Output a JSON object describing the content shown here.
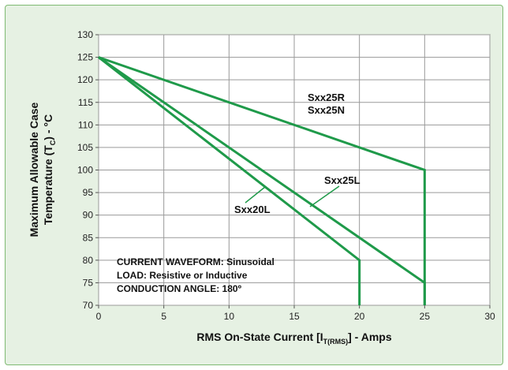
{
  "chart_data": {
    "type": "line",
    "title": "",
    "xlabel": "RMS On-State Current [I",
    "xlabel_sub": "T(RMS)",
    "xlabel_suffix": "] - Amps",
    "ylabel_line1": "Maximum Allowable Case",
    "ylabel_line2": "Temperature (T",
    "ylabel_sub": "C",
    "ylabel_suffix": ") - °C",
    "xlim": [
      0,
      30
    ],
    "ylim": [
      70,
      130
    ],
    "xticks": [
      0,
      5,
      10,
      15,
      20,
      25,
      30
    ],
    "yticks": [
      70,
      75,
      80,
      85,
      90,
      95,
      100,
      105,
      110,
      115,
      120,
      125,
      130
    ],
    "grid": true,
    "line_color": "#1f9a4a",
    "series": [
      {
        "name": "Sxx25R / Sxx25N",
        "label_lines": [
          "Sxx25R",
          "Sxx25N"
        ],
        "x": [
          0,
          25,
          25
        ],
        "y": [
          125,
          100,
          70
        ]
      },
      {
        "name": "Sxx25L",
        "label_lines": [
          "Sxx25L"
        ],
        "x": [
          0,
          25,
          25
        ],
        "y": [
          125,
          75,
          70
        ]
      },
      {
        "name": "Sxx20L",
        "label_lines": [
          "Sxx20L"
        ],
        "x": [
          0,
          20,
          20
        ],
        "y": [
          125,
          80,
          70
        ]
      }
    ],
    "annotations": [
      "CURRENT WAVEFORM: Sinusoidal",
      "LOAD: Resistive or Inductive",
      "CONDUCTION ANGLE: 180º"
    ]
  }
}
